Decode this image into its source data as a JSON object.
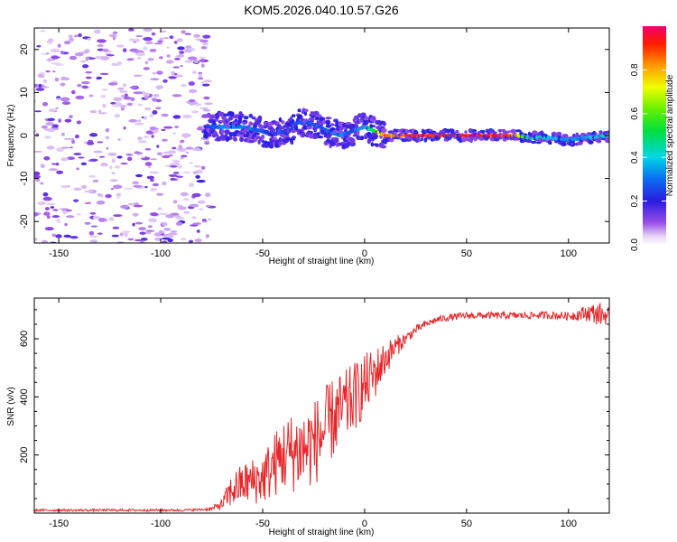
{
  "chart_data": [
    {
      "type": "heatmap",
      "title": "KOM5.2026.040.10.57.G26",
      "xlabel": "Height of straight line (km)",
      "ylabel": "Frequency (Hz)",
      "xlim": [
        -162,
        120
      ],
      "ylim": [
        -25,
        25
      ],
      "xticks": [
        -150,
        -100,
        -50,
        0,
        50,
        100
      ],
      "yticks": [
        -20,
        -10,
        0,
        10,
        20
      ],
      "colorbar": {
        "label": "Normalized spectral amplitude",
        "range": [
          0,
          1
        ],
        "ticks": [
          "0.0",
          "0.2",
          "0.4",
          "0.6",
          "0.8"
        ],
        "ticks_numeric": [
          0.0,
          0.2,
          0.4,
          0.6,
          0.8
        ]
      },
      "signal_trace": {
        "description_x_km": [
          -78,
          -70,
          -60,
          -50,
          -45,
          -42,
          -38,
          -33,
          -28,
          -22,
          -18,
          -12,
          -6,
          0,
          5,
          10,
          20,
          30,
          40,
          50,
          60,
          70,
          75,
          80,
          90,
          100,
          110,
          120
        ],
        "frequency_hz": [
          2,
          2,
          2,
          1,
          0,
          1,
          0.5,
          3,
          3,
          2,
          1,
          0,
          1,
          2,
          1,
          0,
          0,
          0,
          0,
          0,
          0,
          0,
          0,
          -0.5,
          -0.5,
          -1,
          -0.5,
          0
        ],
        "amplitude": [
          0.25,
          0.35,
          0.35,
          0.3,
          0.2,
          0.3,
          0.25,
          0.3,
          0.3,
          0.3,
          0.3,
          0.35,
          0.3,
          0.4,
          0.6,
          0.9,
          1.0,
          1.0,
          1.0,
          1.0,
          1.0,
          1.0,
          0.8,
          0.5,
          0.45,
          0.35,
          0.4,
          0.45
        ]
      },
      "noise_region_x_km": [
        -162,
        -75
      ]
    },
    {
      "type": "line",
      "xlabel": "Height of straight line (km)",
      "ylabel": "SNR (v/v)",
      "xlim": [
        -162,
        120
      ],
      "ylim": [
        0,
        740
      ],
      "xticks": [
        -150,
        -100,
        -50,
        0,
        50,
        100
      ],
      "yticks": [
        200,
        400,
        600
      ],
      "series": [
        {
          "name": "SNR",
          "color": "#e8262a",
          "x": [
            -162,
            -140,
            -120,
            -100,
            -90,
            -80,
            -75,
            -70,
            -65,
            -60,
            -55,
            -50,
            -45,
            -40,
            -35,
            -30,
            -25,
            -20,
            -15,
            -10,
            -5,
            0,
            5,
            10,
            15,
            20,
            25,
            30,
            35,
            40,
            50,
            60,
            70,
            80,
            90,
            100,
            110,
            115,
            120
          ],
          "y": [
            10,
            10,
            10,
            10,
            10,
            12,
            15,
            30,
            80,
            100,
            110,
            120,
            160,
            200,
            210,
            220,
            240,
            280,
            330,
            360,
            400,
            440,
            480,
            530,
            570,
            600,
            630,
            650,
            665,
            672,
            680,
            680,
            680,
            680,
            682,
            678,
            690,
            685,
            680
          ],
          "noise_amplitude": [
            4,
            4,
            4,
            4,
            4,
            4,
            6,
            20,
            60,
            70,
            80,
            90,
            110,
            130,
            140,
            150,
            150,
            150,
            140,
            130,
            120,
            110,
            90,
            60,
            40,
            20,
            15,
            12,
            12,
            12,
            12,
            12,
            12,
            12,
            14,
            14,
            30,
            40,
            30
          ]
        }
      ]
    }
  ]
}
